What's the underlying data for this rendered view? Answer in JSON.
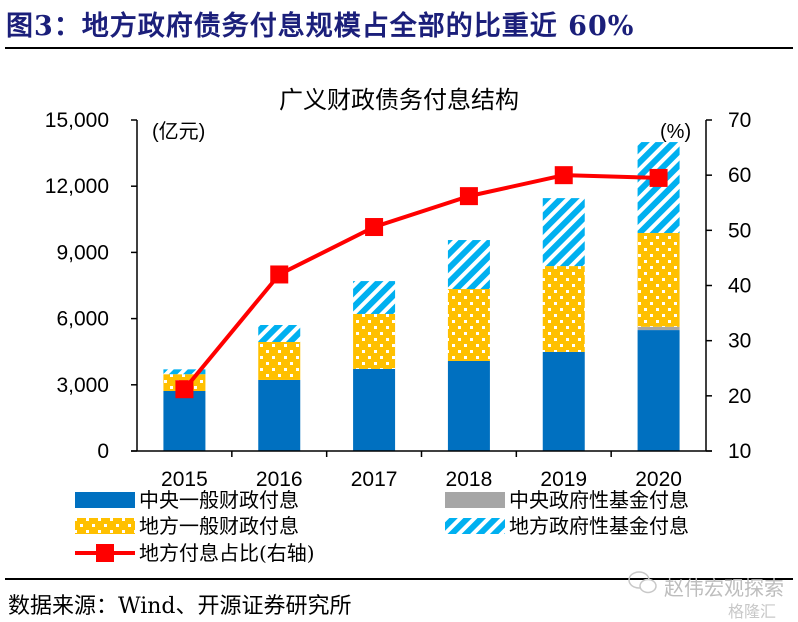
{
  "figure": {
    "title": "图3：地方政府债务付息规模占全部的比重近 60%",
    "source": "数据来源：Wind、开源证券研究所",
    "watermark": "赵伟宏观探索",
    "watermark2": "格隆汇"
  },
  "chart_data": {
    "type": "bar",
    "stacked": true,
    "title": "广义财政债务付息结构",
    "xlabel": "",
    "ylabel": "(亿元)",
    "y2label": "(%)",
    "categories": [
      "2015",
      "2016",
      "2017",
      "2018",
      "2019",
      "2020"
    ],
    "ylim": [
      0,
      15000
    ],
    "yticks": [
      0,
      3000,
      6000,
      9000,
      12000,
      15000
    ],
    "ytick_labels": [
      "0",
      "3,000",
      "6,000",
      "9,000",
      "12,000",
      "15,000"
    ],
    "y2lim": [
      10,
      70
    ],
    "y2ticks": [
      10,
      20,
      30,
      40,
      50,
      60,
      70
    ],
    "y2tick_labels": [
      "10",
      "20",
      "30",
      "40",
      "50",
      "60",
      "70"
    ],
    "grid": false,
    "legend_position": "bottom",
    "series": [
      {
        "name": "中央一般财政付息",
        "kind": "bar",
        "color": "#0070c0",
        "pattern": "solid",
        "values": [
          2720,
          3220,
          3720,
          4080,
          4490,
          5480
        ]
      },
      {
        "name": "中央政府性基金付息",
        "kind": "bar",
        "color": "#a6a6a6",
        "pattern": "solid",
        "values": [
          0,
          0,
          0,
          0,
          0,
          150
        ]
      },
      {
        "name": "地方一般财政付息",
        "kind": "bar",
        "color": "#ffc000",
        "pattern": "dots",
        "values": [
          760,
          1720,
          2490,
          3260,
          3890,
          4250
        ]
      },
      {
        "name": "地方政府性基金付息",
        "kind": "bar",
        "color": "#00b0f0",
        "pattern": "stripes",
        "values": [
          220,
          770,
          1490,
          2220,
          3080,
          4120
        ]
      },
      {
        "name": "地方付息占比(右轴)",
        "kind": "line",
        "axis": "right",
        "color": "#ff0000",
        "marker": "square",
        "values": [
          21.2,
          42.0,
          50.6,
          56.2,
          60.0,
          59.5
        ]
      }
    ],
    "legend": [
      {
        "label": "中央一般财政付息",
        "series": 0
      },
      {
        "label": "中央政府性基金付息",
        "series": 1
      },
      {
        "label": "地方一般财政付息",
        "series": 2
      },
      {
        "label": "地方政府性基金付息",
        "series": 3
      },
      {
        "label": "地方付息占比(右轴)",
        "series": 4
      }
    ]
  }
}
